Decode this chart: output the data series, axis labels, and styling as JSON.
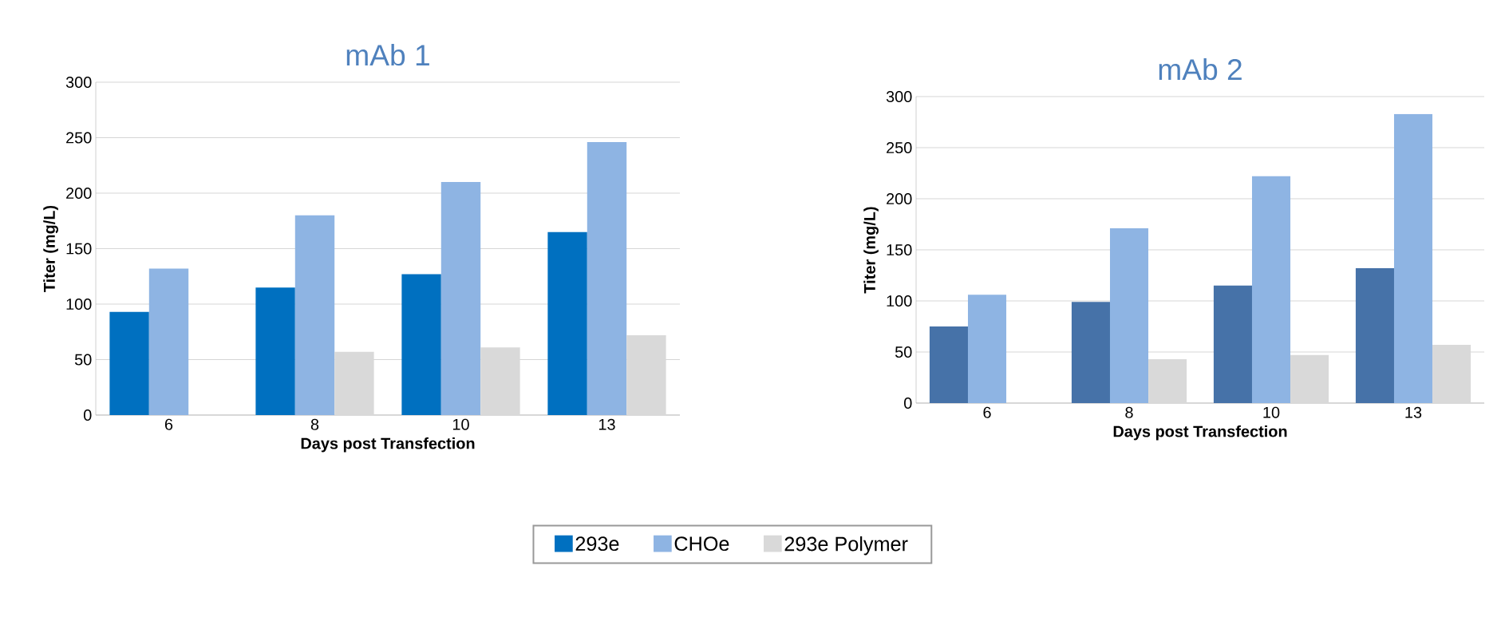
{
  "chart_data": [
    {
      "type": "bar",
      "title": "mAb 1",
      "xlabel": "Days post Transfection",
      "ylabel": "Titer (mg/L)",
      "categories": [
        "6",
        "8",
        "10",
        "13"
      ],
      "series": [
        {
          "name": "293e",
          "color": "#0070c0",
          "values": [
            93,
            115,
            127,
            165
          ]
        },
        {
          "name": "CHOe",
          "color": "#8eb4e3",
          "values": [
            132,
            180,
            210,
            246
          ]
        },
        {
          "name": "293e Polymer",
          "color": "#d9d9d9",
          "values": [
            null,
            57,
            61,
            72
          ]
        }
      ],
      "ylim": [
        0,
        300
      ],
      "yticks": [
        0,
        50,
        100,
        150,
        200,
        250,
        300
      ],
      "grid": "y",
      "legend": "bottom"
    },
    {
      "type": "bar",
      "title": "mAb 2",
      "xlabel": "Days post Transfection",
      "ylabel": "Titer (mg/L)",
      "categories": [
        "6",
        "8",
        "10",
        "13"
      ],
      "series": [
        {
          "color": "#4672a8",
          "values": [
            75,
            99,
            115,
            132
          ]
        },
        {
          "color": "#8eb4e3",
          "values": [
            106,
            171,
            222,
            283
          ]
        },
        {
          "color": "#d9d9d9",
          "values": [
            null,
            43,
            47,
            57
          ]
        }
      ],
      "ylim": [
        0,
        300
      ],
      "yticks": [
        0,
        50,
        100,
        150,
        200,
        250,
        300
      ],
      "grid": "y"
    }
  ]
}
